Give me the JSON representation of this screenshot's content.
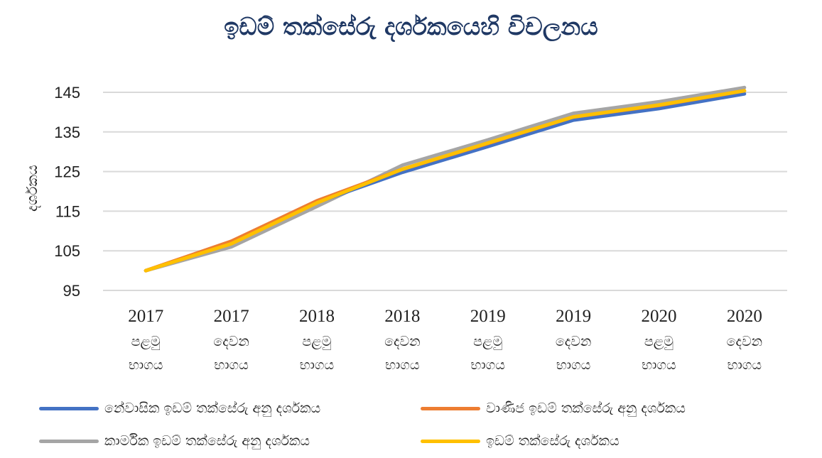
{
  "chart_data": {
    "type": "line",
    "title": "ඉඩම් තක්සේරු දර්ශකයෙහි විචලනය",
    "ylabel": "දර්ශකය",
    "xlabel": "",
    "ylim": [
      95,
      145
    ],
    "yticks": [
      95,
      105,
      115,
      125,
      135,
      145
    ],
    "grid": true,
    "legend_position": "bottom",
    "categories": [
      {
        "year": "2017",
        "half": "පළමු",
        "suffix": "භාගය"
      },
      {
        "year": "2017",
        "half": "දෙවන",
        "suffix": "භාගය"
      },
      {
        "year": "2018",
        "half": "පළමු",
        "suffix": "භාගය"
      },
      {
        "year": "2018",
        "half": "දෙවන",
        "suffix": "භාගය"
      },
      {
        "year": "2019",
        "half": "පළමු",
        "suffix": "භාගය"
      },
      {
        "year": "2019",
        "half": "දෙවන",
        "suffix": "භාගය"
      },
      {
        "year": "2020",
        "half": "පළමු",
        "suffix": "භාගය"
      },
      {
        "year": "2020",
        "half": "දෙවන",
        "suffix": "භාගය"
      }
    ],
    "series": [
      {
        "name": "කාර්මික ඉඩම් තක්සේරු අනු දර්ශකය",
        "color": "#a5a5a5",
        "values": [
          100.0,
          106.0,
          116.2,
          126.6,
          133.0,
          139.7,
          142.6,
          146.2
        ]
      },
      {
        "name": "නේවාසික ඉඩම් තක්සේරු අනු දර්ශකය",
        "color": "#4472c4",
        "values": [
          100.0,
          107.0,
          117.2,
          124.8,
          131.3,
          138.0,
          140.9,
          144.6
        ]
      },
      {
        "name": "වාණිජ ඉඩම් තක්සේරු අනු දර්ශකය",
        "color": "#ed7d31",
        "values": [
          100.0,
          107.4,
          117.6,
          125.6,
          132.1,
          138.8,
          141.7,
          145.4
        ]
      },
      {
        "name": "ඉඩම් තක්සේරු දර්ශකය",
        "color": "#ffc000",
        "values": [
          100.0,
          106.8,
          117.1,
          125.6,
          132.2,
          138.8,
          141.8,
          145.4
        ]
      }
    ]
  }
}
